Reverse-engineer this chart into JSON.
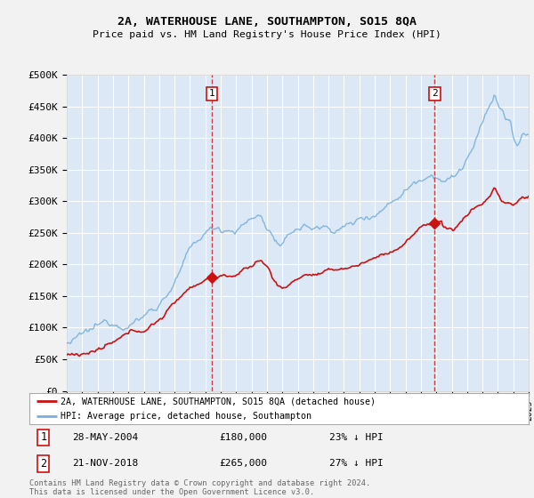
{
  "title": "2A, WATERHOUSE LANE, SOUTHAMPTON, SO15 8QA",
  "subtitle": "Price paid vs. HM Land Registry's House Price Index (HPI)",
  "yticks": [
    0,
    50000,
    100000,
    150000,
    200000,
    250000,
    300000,
    350000,
    400000,
    450000,
    500000
  ],
  "ytick_labels": [
    "£0",
    "£50K",
    "£100K",
    "£150K",
    "£200K",
    "£250K",
    "£300K",
    "£350K",
    "£400K",
    "£450K",
    "£500K"
  ],
  "fig_bg_color": "#f0f0f0",
  "plot_bg_color": "#dce8f5",
  "grid_color": "#ffffff",
  "hpi_color": "#7ab0d8",
  "price_color": "#cc1111",
  "marker1_x": 2004.42,
  "marker2_x": 2018.9,
  "marker1_price": 180000,
  "marker2_price": 265000,
  "legend_entry1": "2A, WATERHOUSE LANE, SOUTHAMPTON, SO15 8QA (detached house)",
  "legend_entry2": "HPI: Average price, detached house, Southampton",
  "annotation1_date": "28-MAY-2004",
  "annotation1_price": "£180,000",
  "annotation1_pct": "23% ↓ HPI",
  "annotation2_date": "21-NOV-2018",
  "annotation2_price": "£265,000",
  "annotation2_pct": "27% ↓ HPI",
  "footer": "Contains HM Land Registry data © Crown copyright and database right 2024.\nThis data is licensed under the Open Government Licence v3.0.",
  "x_start_year": 1995,
  "x_end_year": 2025
}
